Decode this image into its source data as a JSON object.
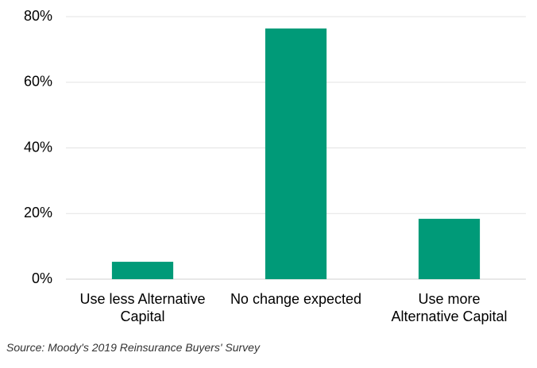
{
  "chart_data": {
    "type": "bar",
    "categories": [
      "Use less Alternative\nCapital",
      "No change expected",
      "Use more\nAlternative Capital"
    ],
    "values": [
      5.3,
      76.4,
      18.4
    ],
    "color": "#009a78",
    "ylim": [
      0,
      80
    ],
    "yticks": [
      {
        "value": 0,
        "label": "0%"
      },
      {
        "value": 20,
        "label": "20%"
      },
      {
        "value": 40,
        "label": "40%"
      },
      {
        "value": 60,
        "label": "60%"
      },
      {
        "value": 80,
        "label": "80%"
      }
    ],
    "grid": true,
    "source": "Source: Moody's 2019 Reinsurance Buyers' Survey"
  }
}
